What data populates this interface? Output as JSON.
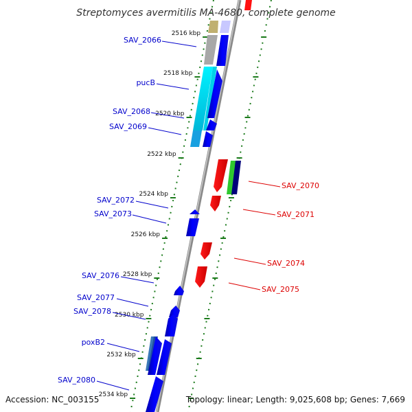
{
  "header": {
    "title": "Streptomyces avermitilis MA-4680, complete genome"
  },
  "footer": {
    "accession": "Accession: NC_003155",
    "summary": "Topology: linear; Length: 9,025,608 bp; Genes: 7,669"
  },
  "colors": {
    "forward_label": "#0000cc",
    "reverse_label": "#dd0000",
    "ruler_tick": "#1a7a1a",
    "backbone": "#8a8a8a"
  },
  "scale_ticks": [
    "2516 kbp",
    "2518 kbp",
    "2520 kbp",
    "2522 kbp",
    "2524 kbp",
    "2526 kbp",
    "2528 kbp",
    "2530 kbp",
    "2532 kbp",
    "2534 kbp"
  ],
  "forward_genes": [
    "SAV_2066",
    "pucB",
    "SAV_2068",
    "SAV_2069",
    "SAV_2072",
    "SAV_2073",
    "SAV_2076",
    "SAV_2077",
    "SAV_2078",
    "poxB2",
    "SAV_2080"
  ],
  "reverse_genes": [
    "SAV_2070",
    "SAV_2071",
    "SAV_2074",
    "SAV_2075"
  ]
}
